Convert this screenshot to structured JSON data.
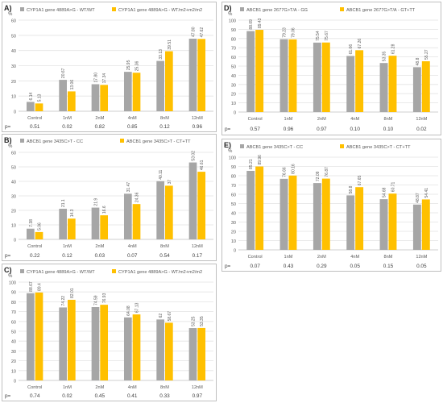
{
  "colors": {
    "gray": "#a6a6a6",
    "yellow": "#ffc000",
    "grid": "#e3e3e3",
    "axis": "#bfbfbf",
    "text": "#595959"
  },
  "chart_data": [
    {
      "id": "A",
      "type": "bar",
      "letter": "A)",
      "categories": [
        "Control",
        "1nM",
        "2nM",
        "4nM",
        "8nM",
        "12nM"
      ],
      "series": [
        {
          "name": "CYP1A1 gene 4889A>G - WT/WT",
          "color": "#a6a6a6",
          "values": [
            6.14,
            20.67,
            17.8,
            25.95,
            33.13,
            47.8
          ],
          "labels": [
            "6.14",
            "20.67",
            "17.80",
            "25.95",
            "33.13",
            "47.80"
          ]
        },
        {
          "name": "CYP1A1 gene 4889A>G - WT/m2+m2/m2",
          "color": "#ffc000",
          "values": [
            5.13,
            13.06,
            17.34,
            25.36,
            39.51,
            47.62
          ],
          "labels": [
            "5.13",
            "13.06",
            "17.34",
            "25.36",
            "39.51",
            "47.62"
          ]
        }
      ],
      "ylabel": "%",
      "ylim": [
        0,
        60
      ],
      "yticks": [
        0,
        10,
        20,
        30,
        40,
        50,
        60
      ],
      "p_label": "p=",
      "p_values": [
        "0.51",
        "0.02",
        "0.82",
        "0.85",
        "0.12",
        "0.96"
      ],
      "grid": true,
      "legend": "top"
    },
    {
      "id": "B",
      "type": "bar",
      "letter": "B)",
      "categories": [
        "Control",
        "1nM",
        "2nM",
        "4nM",
        "8nM",
        "12nM"
      ],
      "series": [
        {
          "name": "ABCB1 gene 3435C>T - CC",
          "color": "#a6a6a6",
          "values": [
            7.38,
            21.1,
            21.9,
            31.47,
            40.11,
            53.02
          ],
          "labels": [
            "7.38",
            "21.1",
            "21.9",
            "31.47",
            "40.11",
            "53.02"
          ]
        },
        {
          "name": "ABCB1 gene 3435C>T - CT+TT",
          "color": "#ffc000",
          "values": [
            5.06,
            14.3,
            16.6,
            24.36,
            37,
            46.61
          ],
          "labels": [
            "5.06",
            "14.3",
            "16.6",
            "24.36",
            "37",
            "46.61"
          ]
        }
      ],
      "ylabel": "%",
      "ylim": [
        0,
        60
      ],
      "yticks": [
        0,
        10,
        20,
        30,
        40,
        50,
        60
      ],
      "p_label": "p=",
      "p_values": [
        "0.22",
        "0.12",
        "0.03",
        "0.07",
        "0.54",
        "0.17"
      ],
      "grid": true,
      "legend": "top"
    },
    {
      "id": "C",
      "type": "bar",
      "letter": "C)",
      "categories": [
        "Control",
        "1nM",
        "2nM",
        "4nM",
        "8nM",
        "12nM"
      ],
      "series": [
        {
          "name": "CYP1A1 gene 4889A>G - WT/WT",
          "color": "#a6a6a6",
          "values": [
            88.67,
            74.22,
            74.59,
            64.08,
            62,
            53.25
          ],
          "labels": [
            "88.67",
            "74.22",
            "74.59",
            "64.08",
            "62",
            "53.25"
          ]
        },
        {
          "name": "CYP1A1 gene 4889A>G - WT/m2+m2/m2",
          "color": "#ffc000",
          "values": [
            89.4,
            82.01,
            76.93,
            67.13,
            58.67,
            53.35
          ],
          "labels": [
            "89.4",
            "82.01",
            "76.93",
            "67.13",
            "58.67",
            "53.35"
          ]
        }
      ],
      "ylabel": "%",
      "ylim": [
        0,
        100
      ],
      "yticks": [
        0,
        10,
        20,
        30,
        40,
        50,
        60,
        70,
        80,
        90,
        100
      ],
      "p_label": "p=",
      "p_values": [
        "0.74",
        "0.02",
        "0.45",
        "0.41",
        "0.33",
        "0.97"
      ],
      "grid": true,
      "legend": "top"
    },
    {
      "id": "D",
      "type": "bar",
      "letter": "D)",
      "categories": [
        "Control",
        "1nM",
        "2nM",
        "4nM",
        "8nM",
        "12nM"
      ],
      "series": [
        {
          "name": "ABCB1 gene 2677G>T/A - GG",
          "color": "#a6a6a6",
          "values": [
            88.09,
            79.23,
            75.54,
            61.06,
            53.35,
            48.8
          ],
          "labels": [
            "88.09",
            "79.23",
            "75.54",
            "61.06",
            "53.35",
            "48.8"
          ]
        },
        {
          "name": "ABCB1 gene 2677G>T/A - GT+TT",
          "color": "#ffc000",
          "values": [
            89.43,
            79.06,
            75.67,
            67.26,
            61.28,
            55.27
          ],
          "labels": [
            "89.43",
            "79.06",
            "75.67",
            "67.26",
            "61.28",
            "55.27"
          ]
        }
      ],
      "ylabel": "%",
      "ylim": [
        0,
        100
      ],
      "yticks": [
        0,
        10,
        20,
        30,
        40,
        50,
        60,
        70,
        80,
        90,
        100
      ],
      "p_label": "p=",
      "p_values": [
        "0.57",
        "0.96",
        "0.97",
        "0.10",
        "0.10",
        "0.02"
      ],
      "grid": true,
      "legend": "top"
    },
    {
      "id": "E",
      "type": "bar",
      "letter": "E)",
      "categories": [
        "Control",
        "1nM",
        "2nM",
        "4nM",
        "8nM",
        "12nM"
      ],
      "series": [
        {
          "name": "ABCB1 gene 3435C>T - CC",
          "color": "#a6a6a6",
          "values": [
            85.21,
            76.66,
            72.09,
            58.8,
            54.68,
            48.87
          ],
          "labels": [
            "85.21",
            "76.66",
            "72.09",
            "58.8",
            "54.68",
            "48.87"
          ]
        },
        {
          "name": "ABCB1 gene 3435C>T - CT+TT",
          "color": "#ffc000",
          "values": [
            89.96,
            80.16,
            76.87,
            67.65,
            60.71,
            54.41
          ],
          "labels": [
            "89.96",
            "80.16",
            "76.87",
            "67.65",
            "60.71",
            "54.41"
          ]
        }
      ],
      "ylabel": "%",
      "ylim": [
        0,
        100
      ],
      "yticks": [
        0,
        10,
        20,
        30,
        40,
        50,
        60,
        70,
        80,
        90,
        100
      ],
      "p_label": "p=",
      "p_values": [
        "0.07",
        "0.43",
        "0.29",
        "0.05",
        "0.15",
        "0.05"
      ],
      "grid": true,
      "legend": "top"
    }
  ]
}
